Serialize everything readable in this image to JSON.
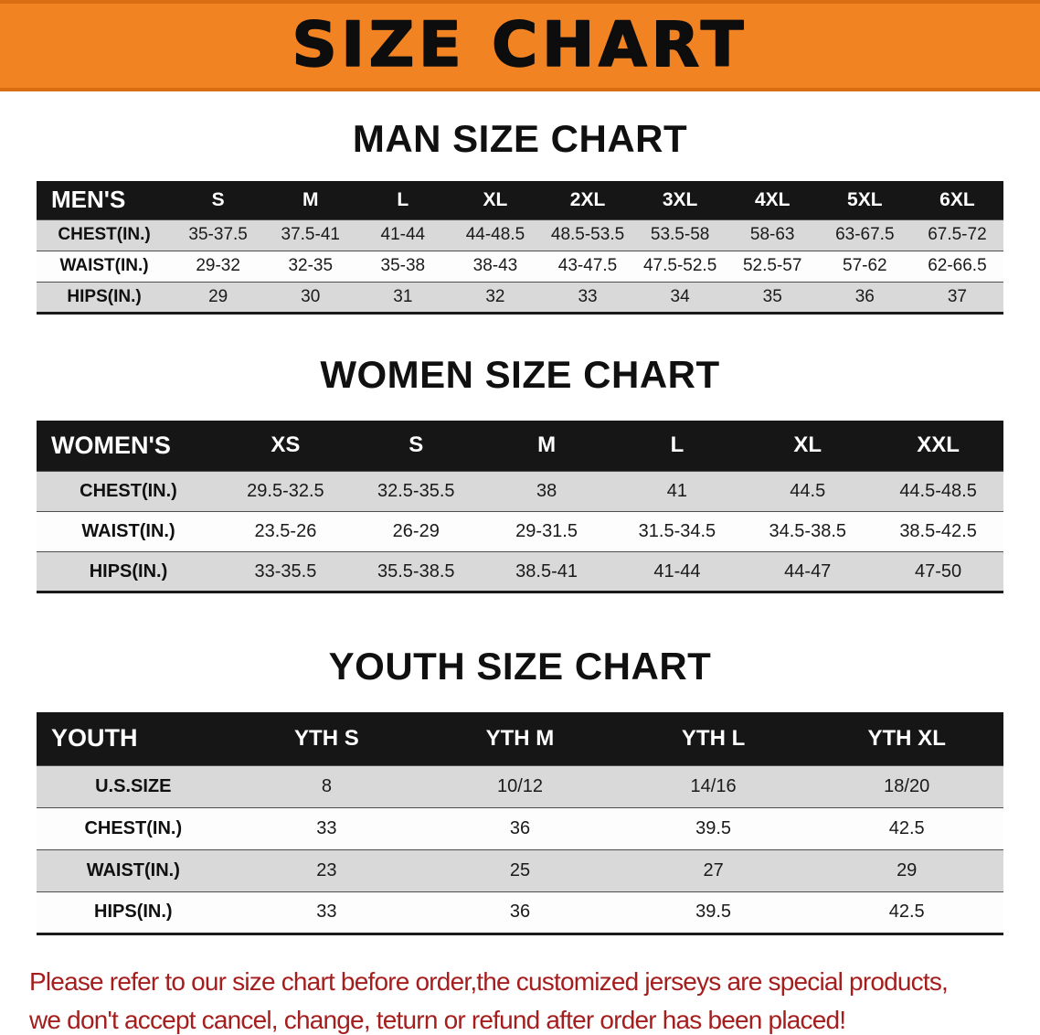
{
  "banner": {
    "title": "SIZE CHART",
    "bg_color": "#F28322"
  },
  "chart_data": [
    {
      "type": "table",
      "title": "MAN SIZE CHART",
      "columns": [
        "MEN'S",
        "S",
        "M",
        "L",
        "XL",
        "2XL",
        "3XL",
        "4XL",
        "5XL",
        "6XL"
      ],
      "rows": [
        [
          "CHEST(IN.)",
          "35-37.5",
          "37.5-41",
          "41-44",
          "44-48.5",
          "48.5-53.5",
          "53.5-58",
          "58-63",
          "63-67.5",
          "67.5-72"
        ],
        [
          "WAIST(IN.)",
          "29-32",
          "32-35",
          "35-38",
          "38-43",
          "43-47.5",
          "47.5-52.5",
          "52.5-57",
          "57-62",
          "62-66.5"
        ],
        [
          "HIPS(IN.)",
          "29",
          "30",
          "31",
          "32",
          "33",
          "34",
          "35",
          "36",
          "37"
        ]
      ]
    },
    {
      "type": "table",
      "title": "WOMEN SIZE CHART",
      "columns": [
        "WOMEN'S",
        "XS",
        "S",
        "M",
        "L",
        "XL",
        "XXL"
      ],
      "rows": [
        [
          "CHEST(IN.)",
          "29.5-32.5",
          "32.5-35.5",
          "38",
          "41",
          "44.5",
          "44.5-48.5"
        ],
        [
          "WAIST(IN.)",
          "23.5-26",
          "26-29",
          "29-31.5",
          "31.5-34.5",
          "34.5-38.5",
          "38.5-42.5"
        ],
        [
          "HIPS(IN.)",
          "33-35.5",
          "35.5-38.5",
          "38.5-41",
          "41-44",
          "44-47",
          "47-50"
        ]
      ]
    },
    {
      "type": "table",
      "title": "YOUTH SIZE CHART",
      "columns": [
        "YOUTH",
        "YTH S",
        "YTH M",
        "YTH L",
        "YTH XL"
      ],
      "rows": [
        [
          "U.S.SIZE",
          "8",
          "10/12",
          "14/16",
          "18/20"
        ],
        [
          "CHEST(IN.)",
          "33",
          "36",
          "39.5",
          "42.5"
        ],
        [
          "WAIST(IN.)",
          "23",
          "25",
          "27",
          "29"
        ],
        [
          "HIPS(IN.)",
          "33",
          "36",
          "39.5",
          "42.5"
        ]
      ]
    }
  ],
  "footer": {
    "line1": "Please refer to our size chart before order,the customized jerseys are special products,",
    "line2": "we don't accept cancel, change, teturn or refund after order has been placed!",
    "text_color": "#A51E1E"
  }
}
